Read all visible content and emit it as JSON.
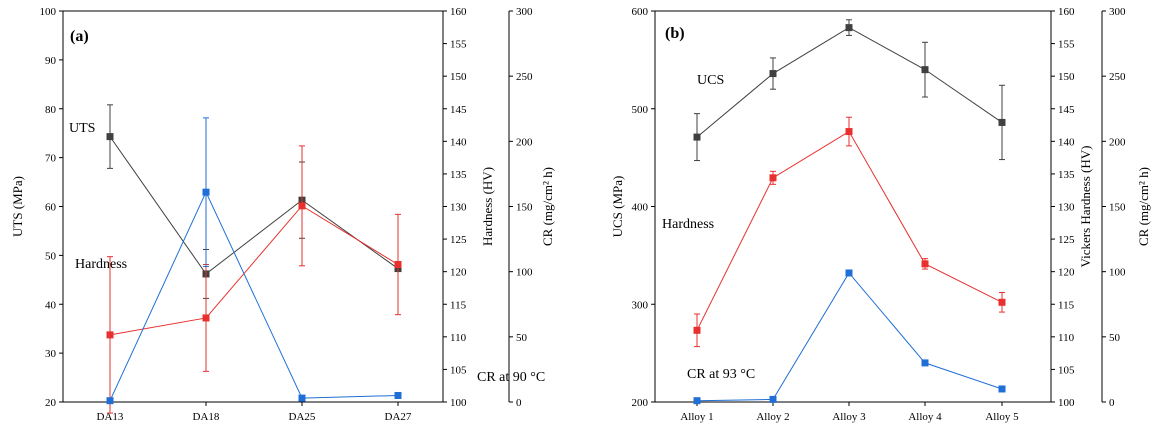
{
  "chart_data": [
    {
      "panel_label": "(a)",
      "type": "line",
      "categories": [
        "DA13",
        "DA18",
        "DA25",
        "DA27"
      ],
      "axes": {
        "left": {
          "label": "UTS (MPa)",
          "range": [
            20,
            100
          ],
          "ticks": [
            20,
            30,
            40,
            50,
            60,
            70,
            80,
            90,
            100
          ]
        },
        "right1": {
          "label": "Hardness (HV)",
          "range": [
            100,
            160
          ],
          "ticks": [
            100,
            105,
            110,
            115,
            120,
            125,
            130,
            135,
            140,
            145,
            150,
            155,
            160
          ]
        },
        "right2": {
          "label": "CR (mg/cm² h)",
          "range": [
            0,
            300
          ],
          "ticks": [
            0,
            50,
            100,
            150,
            200,
            250,
            300
          ]
        }
      },
      "series": [
        {
          "name": "UTS",
          "axis": "left",
          "color": "#404040",
          "values": [
            74.3,
            46.2,
            61.3,
            47.3
          ],
          "errors": [
            6.5,
            5.0,
            7.8,
            0
          ]
        },
        {
          "name": "Hardness",
          "axis": "right1",
          "color": "#e8302e",
          "values": [
            110.3,
            112.9,
            130.1,
            121.1
          ],
          "errors": [
            12,
            8.2,
            9.2,
            7.7
          ]
        },
        {
          "name": "CR at 90 °C",
          "axis": "right2",
          "color": "#1f6fd6",
          "values": [
            1,
            161,
            3,
            5
          ],
          "errors": [
            0,
            57,
            0,
            0
          ]
        }
      ],
      "annotations": [
        "UTS",
        "Hardness",
        "CR at 90 °C"
      ]
    },
    {
      "panel_label": "(b)",
      "type": "line",
      "categories": [
        "Alloy 1",
        "Alloy 2",
        "Alloy 3",
        "Alloy 4",
        "Alloy 5"
      ],
      "axes": {
        "left": {
          "label": "UCS (MPa)",
          "range": [
            200,
            600
          ],
          "ticks": [
            200,
            300,
            400,
            500,
            600
          ]
        },
        "right1": {
          "label": "Vickers Hardness (HV)",
          "range": [
            100,
            160
          ],
          "ticks": [
            100,
            105,
            110,
            115,
            120,
            125,
            130,
            135,
            140,
            145,
            150,
            155,
            160
          ]
        },
        "right2": {
          "label": "CR (mg/cm² h)",
          "range": [
            0,
            300
          ],
          "ticks": [
            0,
            50,
            100,
            150,
            200,
            250,
            300
          ]
        }
      },
      "series": [
        {
          "name": "UCS",
          "axis": "left",
          "color": "#404040",
          "values": [
            471,
            536,
            583,
            540,
            486
          ],
          "errors": [
            24,
            16,
            8,
            28,
            38
          ]
        },
        {
          "name": "Hardness",
          "axis": "right1",
          "color": "#e8302e",
          "values": [
            111,
            134.4,
            141.5,
            121.2,
            115.3
          ],
          "errors": [
            2.5,
            1.0,
            2.2,
            0.8,
            1.5
          ]
        },
        {
          "name": "CR at 93 °C",
          "axis": "right2",
          "color": "#1f6fd6",
          "values": [
            1,
            2,
            99,
            30,
            10
          ],
          "errors": [
            0,
            0,
            0,
            0,
            0
          ]
        }
      ],
      "annotations": [
        "UCS",
        "Hardness",
        "CR at 93 °C"
      ]
    }
  ]
}
